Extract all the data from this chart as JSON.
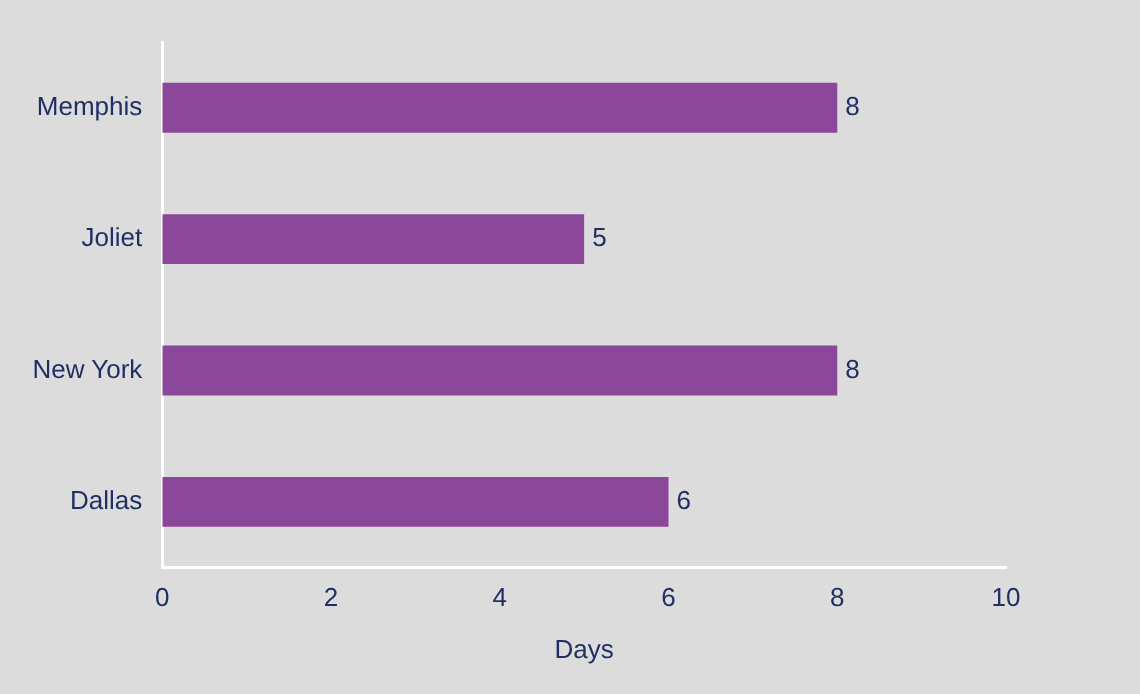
{
  "chart_data": {
    "type": "bar",
    "orientation": "horizontal",
    "categories": [
      "Memphis",
      "Joliet",
      "New York",
      "Dallas"
    ],
    "values": [
      8,
      5,
      8,
      6
    ],
    "color": "#8b4799",
    "xlim": [
      0,
      10
    ],
    "xticks": [
      0,
      2,
      4,
      6,
      8,
      10
    ],
    "xlabel": "Days",
    "data_labels": true,
    "grid": false,
    "legend": false
  }
}
